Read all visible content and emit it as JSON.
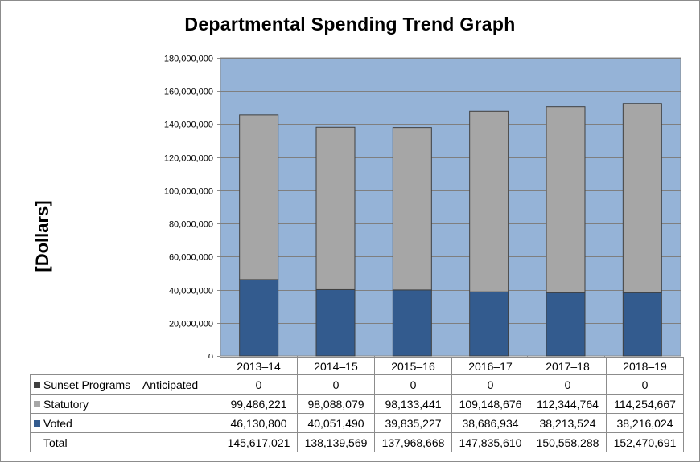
{
  "chart_data": {
    "type": "bar",
    "stacked": true,
    "title": "Departmental Spending Trend Graph",
    "ylabel": "[Dollars]",
    "xlabel": "",
    "ylim": [
      0,
      180000000
    ],
    "yticks": [
      0,
      20000000,
      40000000,
      60000000,
      80000000,
      100000000,
      120000000,
      140000000,
      160000000,
      180000000
    ],
    "ytick_labels": [
      "0",
      "20,000,000",
      "40,000,000",
      "60,000,000",
      "80,000,000",
      "100,000,000",
      "120,000,000",
      "140,000,000",
      "160,000,000",
      "180,000,000"
    ],
    "categories": [
      "2013–14",
      "2014–15",
      "2015–16",
      "2016–17",
      "2017–18",
      "2018–19"
    ],
    "series": [
      {
        "name": "Voted",
        "color": "#335b8e",
        "values": [
          46130800,
          40051490,
          39835227,
          38686934,
          38213524,
          38216024
        ],
        "labels": [
          "46,130,800",
          "40,051,490",
          "39,835,227",
          "38,686,934",
          "38,213,524",
          "38,216,024"
        ]
      },
      {
        "name": "Statutory",
        "color": "#a6a6a6",
        "values": [
          99486221,
          98088079,
          98133441,
          109148676,
          112344764,
          114254667
        ],
        "labels": [
          "99,486,221",
          "98,088,079",
          "98,133,441",
          "109,148,676",
          "112,344,764",
          "114,254,667"
        ]
      },
      {
        "name": "Sunset Programs – Anticipated",
        "color": "#404040",
        "values": [
          0,
          0,
          0,
          0,
          0,
          0
        ],
        "labels": [
          "0",
          "0",
          "0",
          "0",
          "0",
          "0"
        ]
      }
    ],
    "totals": {
      "name": "Total",
      "values": [
        145617021,
        138139569,
        137968668,
        147835610,
        150558288,
        152470691
      ],
      "labels": [
        "145,617,021",
        "138,139,569",
        "137,968,668",
        "147,835,610",
        "150,558,288",
        "152,470,691"
      ]
    },
    "plot_background": "#95b3d7",
    "grid": true,
    "legend": "data table below chart"
  }
}
